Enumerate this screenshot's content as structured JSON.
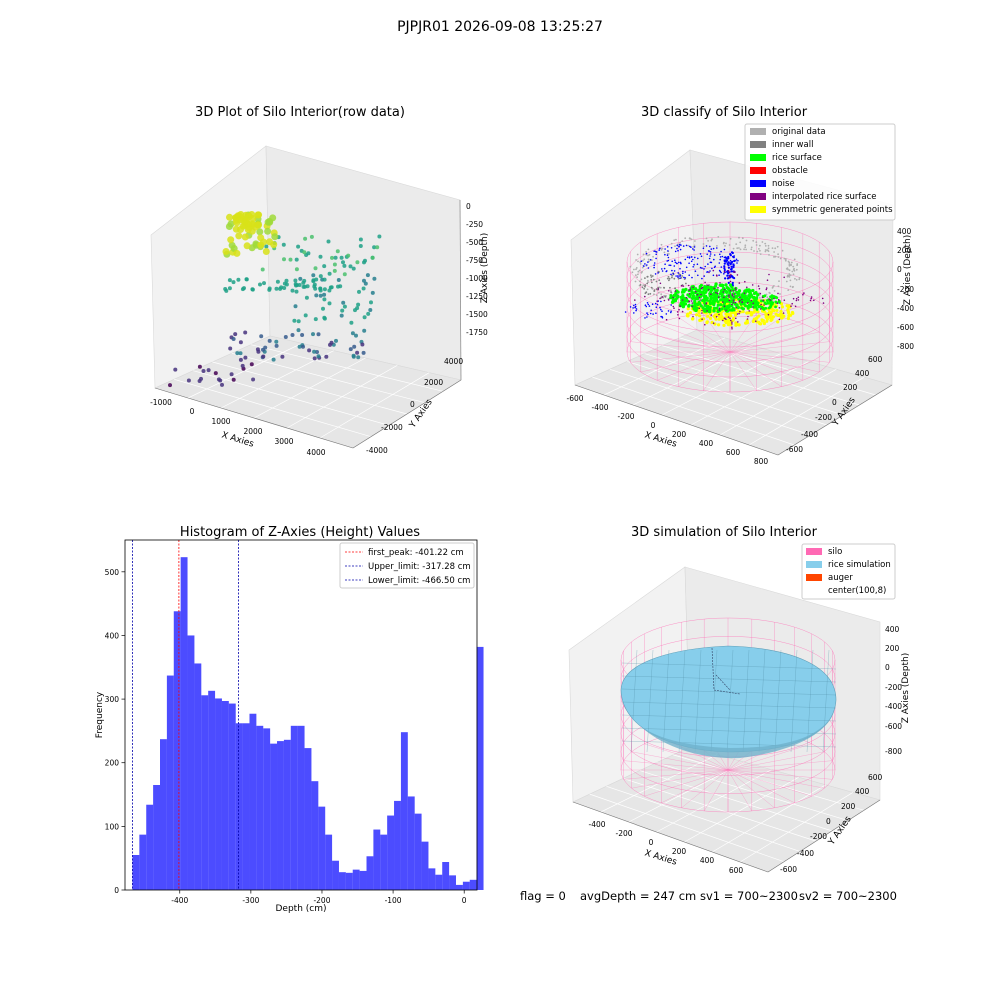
{
  "suptitle": "PJPJR01 2026-09-08 13:25:27",
  "footer": {
    "flag": "flag = 0",
    "avg_depth": "avgDepth = 247 cm",
    "sv1": "sv1 = 700~2300",
    "sv2": "sv2 = 700~2300"
  },
  "panel1": {
    "title": "3D Plot of Silo Interior(row data)",
    "xlabel": "X Axies",
    "ylabel": "Y Axies",
    "zlabel": "Z Axies (Depth)",
    "xticks": [
      "-1000",
      "0",
      "1000",
      "2000",
      "3000",
      "4000"
    ],
    "yticks": [
      "-4000",
      "-2000",
      "0",
      "2000",
      "4000"
    ],
    "zticks": [
      "0",
      "-250",
      "-500",
      "-750",
      "-1000",
      "-1250",
      "-1500",
      "-1750"
    ]
  },
  "panel2": {
    "title": "3D classify of Silo Interior",
    "xlabel": "X Axies",
    "ylabel": "Y Axies",
    "zlabel": "Z Axies (Depth)",
    "xticks": [
      "-600",
      "-400",
      "-200",
      "0",
      "200",
      "400",
      "600",
      "800"
    ],
    "yticks": [
      "-600",
      "-400",
      "-200",
      "0",
      "200",
      "400",
      "600"
    ],
    "zticks": [
      "400",
      "200",
      "0",
      "-200",
      "-400",
      "-600",
      "-800"
    ],
    "legend": [
      {
        "label": "original data",
        "color": "#b0b0b0"
      },
      {
        "label": "inner wall",
        "color": "#808080"
      },
      {
        "label": "rice surface",
        "color": "#00ff00"
      },
      {
        "label": "obstacle",
        "color": "#ff0000"
      },
      {
        "label": "noise",
        "color": "#0000ff"
      },
      {
        "label": "interpolated rice surface",
        "color": "#800080"
      },
      {
        "label": "symmetric generated points",
        "color": "#ffff00"
      }
    ]
  },
  "panel3": {
    "title": "3D simulation of Silo Interior",
    "xlabel": "X Axies",
    "ylabel": "Y Axies",
    "zlabel": "Z Axies (Depth)",
    "xticks": [
      "-400",
      "-200",
      "0",
      "200",
      "400",
      "600"
    ],
    "yticks": [
      "-600",
      "-400",
      "-200",
      "0",
      "200",
      "400",
      "600"
    ],
    "zticks": [
      "400",
      "200",
      "0",
      "-200",
      "-400",
      "-600",
      "-800"
    ],
    "legend": [
      {
        "label": "silo",
        "color": "#ff69b4"
      },
      {
        "label": "rice simulation",
        "color": "#87ceeb"
      },
      {
        "label": "auger",
        "color": "#ff4500"
      },
      {
        "label": "center(100,8)",
        "color": "#ffffff"
      }
    ]
  },
  "chart_data": {
    "type": "bar",
    "title": "Histogram of Z-Axies (Height) Values",
    "xlabel": "Depth (cm)",
    "ylabel": "Frequency",
    "xlim": [
      -477,
      18
    ],
    "ylim": [
      0,
      550
    ],
    "xticks": [
      -400,
      -300,
      -200,
      -100,
      0
    ],
    "yticks": [
      0,
      100,
      200,
      300,
      400,
      500
    ],
    "bar_color": "#0000ff",
    "bins": {
      "start": -466.5,
      "width": 9.68,
      "counts": [
        55,
        87,
        134,
        165,
        237,
        337,
        438,
        523,
        400,
        356,
        306,
        313,
        301,
        297,
        293,
        262,
        262,
        277,
        258,
        254,
        230,
        234,
        236,
        258,
        258,
        223,
        171,
        131,
        87,
        46,
        28,
        27,
        32,
        30,
        53,
        95,
        87,
        117,
        140,
        248,
        147,
        120,
        76,
        34,
        24,
        44,
        23,
        8,
        13,
        16,
        382
      ]
    },
    "vlines": [
      {
        "label": "first_peak: -401.22 cm",
        "x": -401.22,
        "color": "#ff0000"
      },
      {
        "label": "Upper_limit: -317.28 cm",
        "x": -317.28,
        "color": "#0000aa"
      },
      {
        "label": "Lower_limit: -466.50 cm",
        "x": -466.5,
        "color": "#0000aa"
      }
    ],
    "legend_position": "upper right"
  }
}
